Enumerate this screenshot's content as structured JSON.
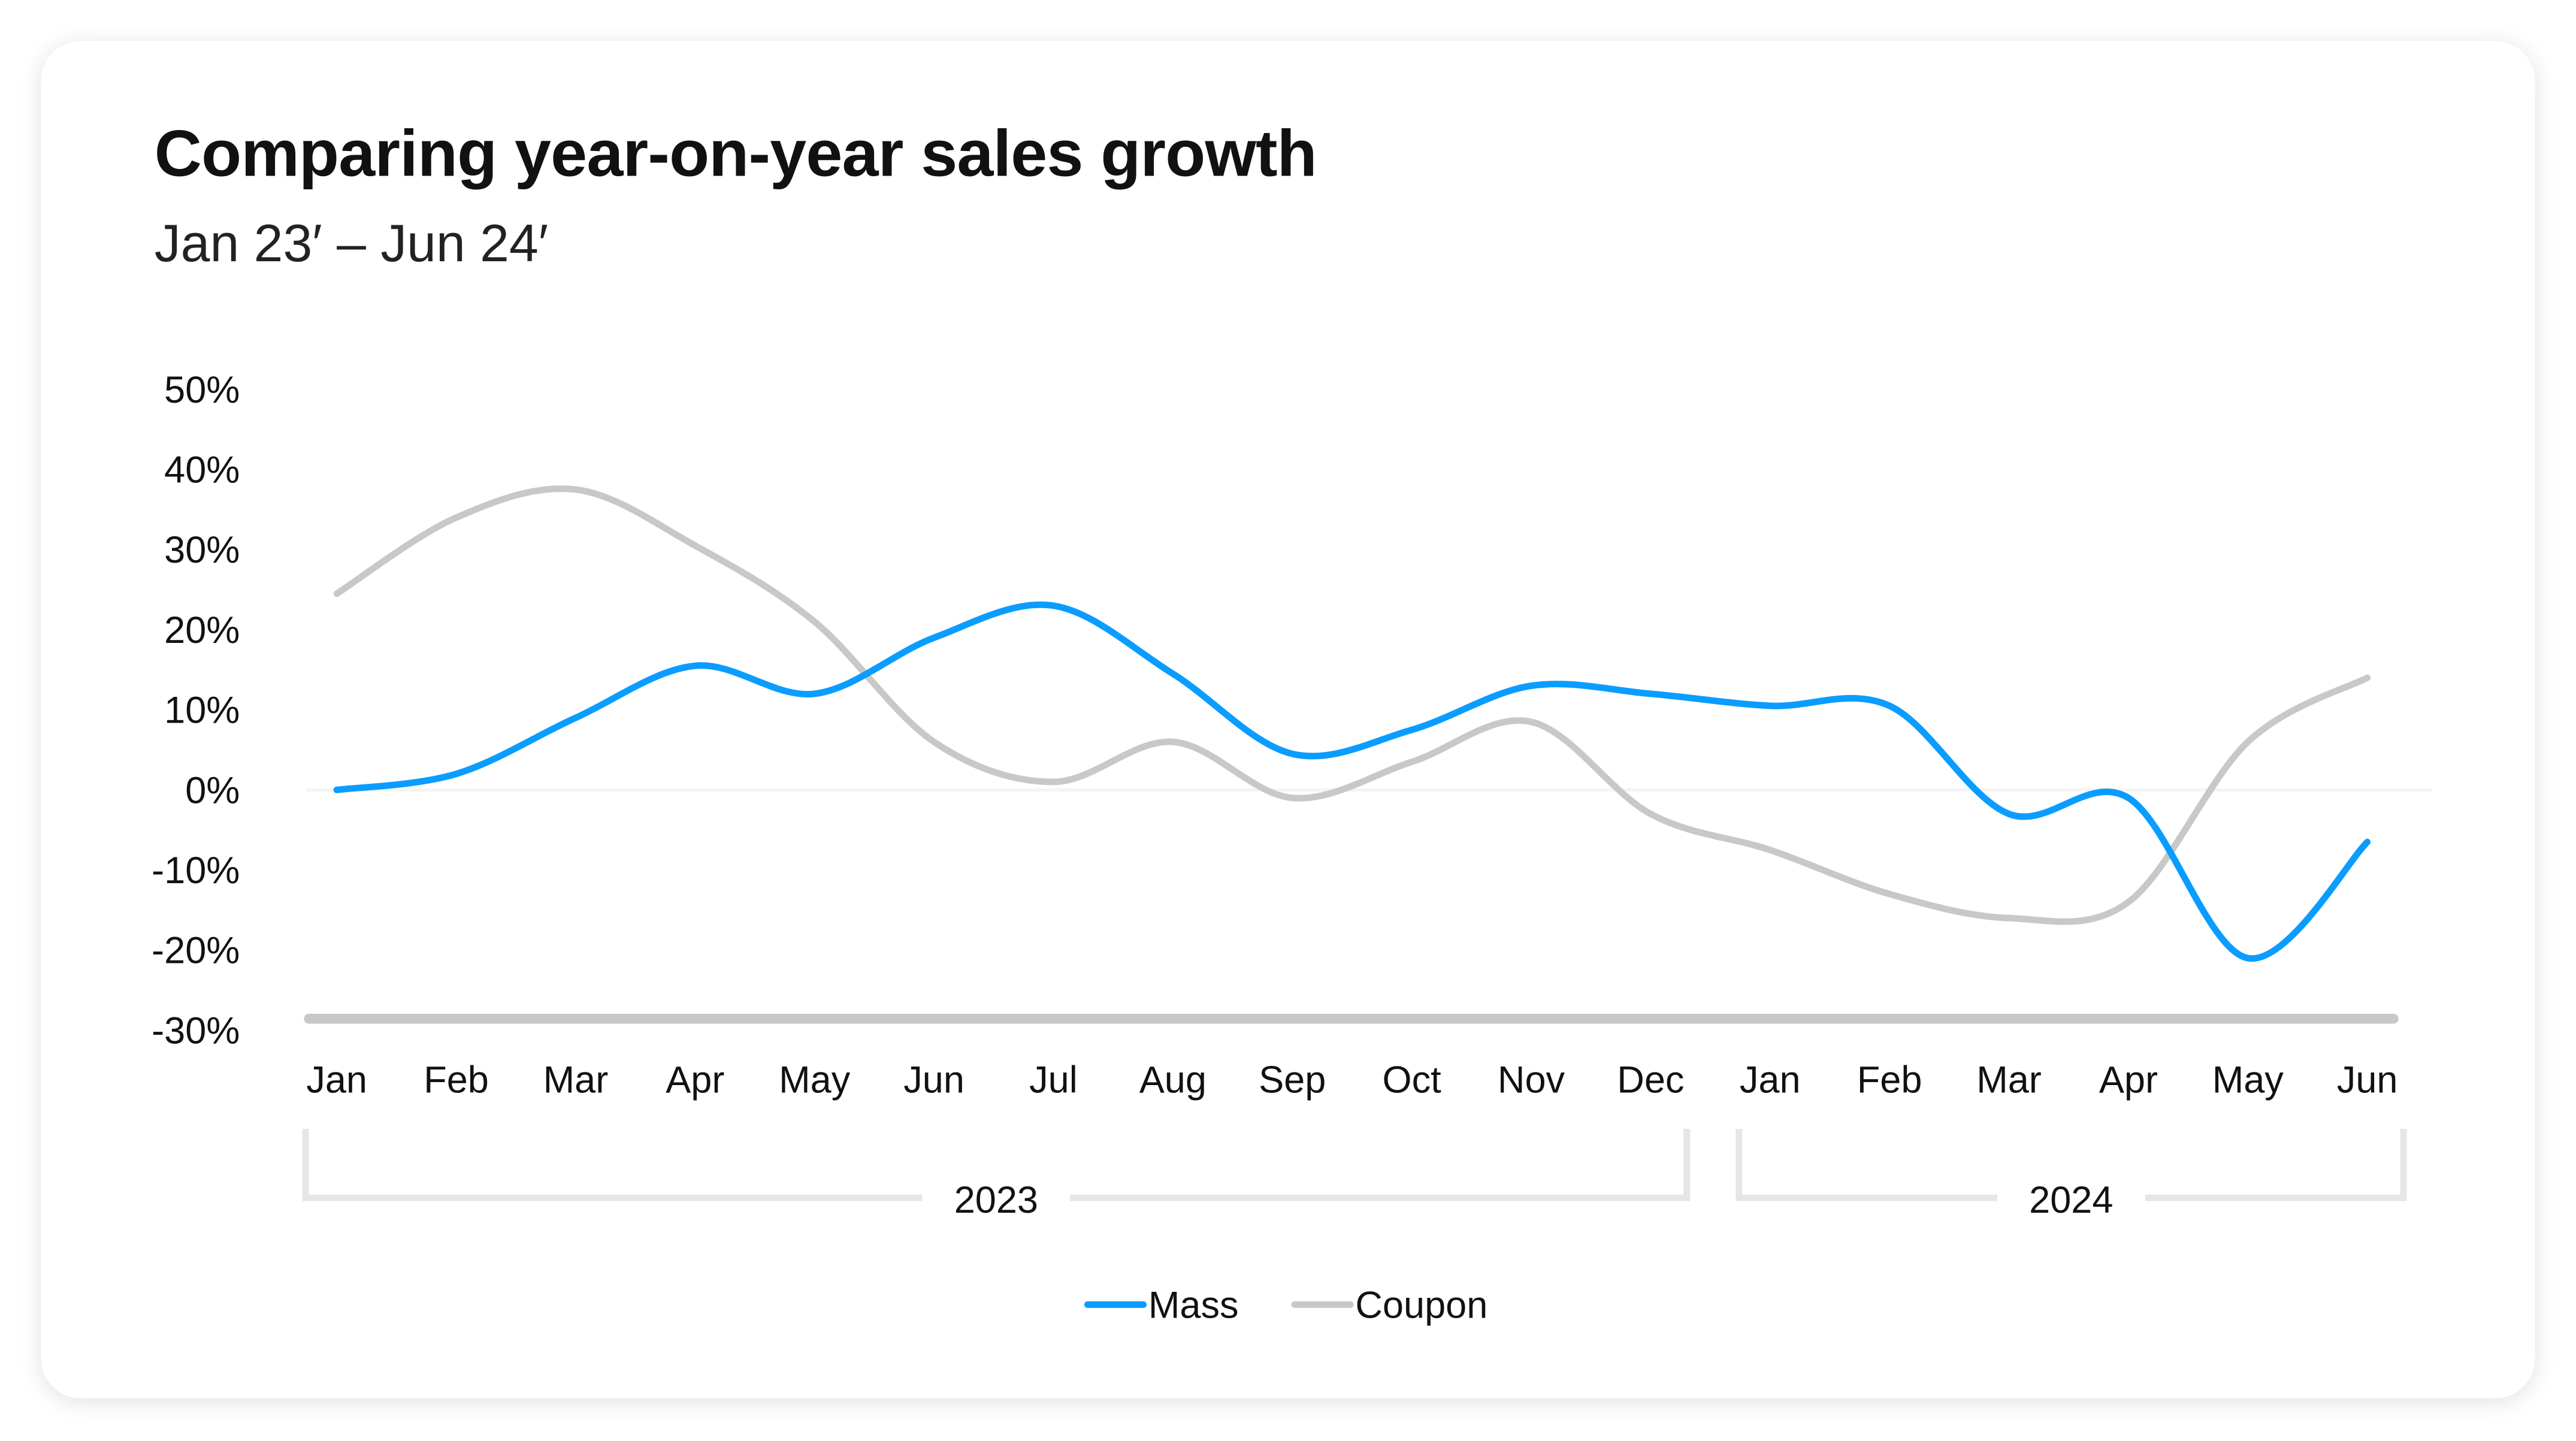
{
  "chart_data": {
    "type": "line",
    "title": "Comparing year-on-year sales growth",
    "subtitle": "Jan 23′ – Jun 24′",
    "xlabel": "",
    "ylabel": "",
    "categories": [
      "Jan",
      "Feb",
      "Mar",
      "Apr",
      "May",
      "Jun",
      "Jul",
      "Aug",
      "Sep",
      "Oct",
      "Nov",
      "Dec",
      "Jan",
      "Feb",
      "Mar",
      "Apr",
      "May",
      "Jun"
    ],
    "year_groups": [
      {
        "label": "2023",
        "start": 0,
        "end": 11
      },
      {
        "label": "2024",
        "start": 12,
        "end": 17
      }
    ],
    "y_ticks": [
      "50%",
      "40%",
      "30%",
      "20%",
      "10%",
      "0%",
      "-10%",
      "-20%",
      "-30%"
    ],
    "ylim": [
      -30,
      50
    ],
    "y_unit": "%",
    "grid": false,
    "smooth": true,
    "legend_position": "bottom-center",
    "series": [
      {
        "name": "Mass",
        "color": "#0a9dff",
        "values": [
          0,
          2,
          9,
          15.5,
          12,
          19,
          23,
          14.5,
          4.5,
          7.5,
          13,
          12,
          10.5,
          10.5,
          -3,
          -1,
          -21,
          -6.5
        ]
      },
      {
        "name": "Coupon",
        "color": "#c8c8c8",
        "values": [
          24.5,
          34,
          37.5,
          30.5,
          21,
          6,
          1,
          6,
          -1,
          3.5,
          8.5,
          -3,
          -7.5,
          -13,
          -16,
          -14,
          6,
          14
        ]
      }
    ]
  }
}
